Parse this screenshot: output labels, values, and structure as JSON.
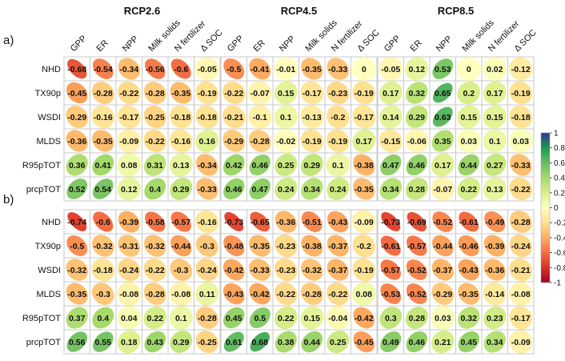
{
  "chart_data": {
    "type": "heatmap",
    "variant": "correlation ellipse matrix",
    "scenarios": [
      "RCP2.6",
      "RCP4.5",
      "RCP8.5"
    ],
    "panels": [
      "a)",
      "b)"
    ],
    "columns": [
      "GPP",
      "ER",
      "NPP",
      "Milk solids",
      "N fertilizer",
      "Δ SOC"
    ],
    "rows": [
      "NHD",
      "TX90p",
      "WSDI",
      "MLDS",
      "R95pTOT",
      "prcpTOT"
    ],
    "values": {
      "a)": {
        "RCP2.6": [
          [
            -0.68,
            -0.54,
            -0.34,
            -0.56,
            -0.6,
            -0.05
          ],
          [
            -0.45,
            -0.28,
            -0.22,
            -0.28,
            -0.35,
            -0.19
          ],
          [
            -0.29,
            -0.16,
            -0.17,
            -0.25,
            -0.18,
            -0.18
          ],
          [
            -0.36,
            -0.35,
            -0.09,
            -0.22,
            -0.16,
            0.16
          ],
          [
            0.36,
            0.41,
            0.08,
            0.31,
            0.13,
            -0.34
          ],
          [
            0.52,
            0.54,
            0.12,
            0.4,
            0.29,
            -0.33
          ]
        ],
        "RCP4.5": [
          [
            -0.5,
            -0.41,
            -0.01,
            -0.35,
            -0.33,
            0
          ],
          [
            -0.22,
            -0.07,
            0.15,
            -0.17,
            -0.23,
            -0.19
          ],
          [
            -0.21,
            -0.1,
            0.1,
            -0.13,
            -0.2,
            -0.17
          ],
          [
            -0.29,
            -0.28,
            -0.02,
            -0.19,
            -0.19,
            0.17
          ],
          [
            0.42,
            0.46,
            0.25,
            0.29,
            0.1,
            -0.38
          ],
          [
            0.46,
            0.47,
            0.24,
            0.34,
            0.24,
            -0.35
          ]
        ],
        "RCP8.5": [
          [
            -0.05,
            0.12,
            0.53,
            0,
            0.02,
            -0.12
          ],
          [
            0.17,
            0.32,
            0.65,
            0.2,
            0.17,
            -0.19
          ],
          [
            0.14,
            0.29,
            0.63,
            0.15,
            0.15,
            -0.18
          ],
          [
            -0.15,
            -0.06,
            0.35,
            0.03,
            0.1,
            0.03
          ],
          [
            0.47,
            0.46,
            0.17,
            0.44,
            0.27,
            -0.33
          ],
          [
            0.34,
            0.28,
            -0.07,
            0.22,
            0.13,
            -0.22
          ]
        ]
      },
      "b)": {
        "RCP2.6": [
          [
            -0.74,
            -0.6,
            -0.39,
            -0.58,
            -0.57,
            -0.16
          ],
          [
            -0.5,
            -0.32,
            -0.31,
            -0.32,
            -0.44,
            -0.3
          ],
          [
            -0.32,
            -0.18,
            -0.24,
            -0.22,
            -0.3,
            -0.24
          ],
          [
            -0.35,
            -0.3,
            -0.08,
            -0.28,
            -0.08,
            0.11
          ],
          [
            0.37,
            0.4,
            0.04,
            0.22,
            0.1,
            -0.28
          ],
          [
            0.56,
            0.55,
            0.18,
            0.43,
            0.29,
            -0.25
          ]
        ],
        "RCP4.5": [
          [
            -0.73,
            -0.65,
            -0.36,
            -0.51,
            -0.43,
            -0.09
          ],
          [
            -0.48,
            -0.35,
            -0.23,
            -0.38,
            -0.37,
            -0.2
          ],
          [
            -0.42,
            -0.33,
            -0.23,
            -0.32,
            -0.37,
            -0.19
          ],
          [
            -0.43,
            -0.42,
            -0.22,
            -0.28,
            -0.22,
            0.08
          ],
          [
            0.45,
            0.5,
            0.22,
            0.15,
            -0.04,
            -0.42
          ],
          [
            0.61,
            0.68,
            0.38,
            0.44,
            0.25,
            -0.45
          ]
        ],
        "RCP8.5": [
          [
            -0.73,
            -0.69,
            -0.52,
            -0.61,
            -0.49,
            -0.28
          ],
          [
            -0.61,
            -0.57,
            -0.44,
            -0.46,
            -0.39,
            -0.24
          ],
          [
            -0.57,
            -0.52,
            -0.37,
            -0.43,
            -0.36,
            -0.21
          ],
          [
            -0.53,
            -0.52,
            -0.29,
            -0.35,
            -0.14,
            -0.08
          ],
          [
            0.3,
            0.28,
            0.03,
            0.32,
            0.23,
            -0.17
          ],
          [
            0.49,
            0.46,
            0.21,
            0.45,
            0.34,
            -0.09
          ]
        ]
      }
    },
    "colorbar": {
      "range": [
        -1,
        1
      ],
      "ticks": [
        "1",
        "0.8",
        "0.6",
        "0.4",
        "0.2",
        "0",
        "-0.2",
        "-0.4",
        "-0.6",
        "-0.8",
        "-1"
      ],
      "colors": [
        "#a50026",
        "#d73027",
        "#f46d43",
        "#fdae61",
        "#fee090",
        "#ffffbf",
        "#d9ef8b",
        "#a6d96a",
        "#66bd63",
        "#1a9850",
        "#313695"
      ]
    }
  }
}
